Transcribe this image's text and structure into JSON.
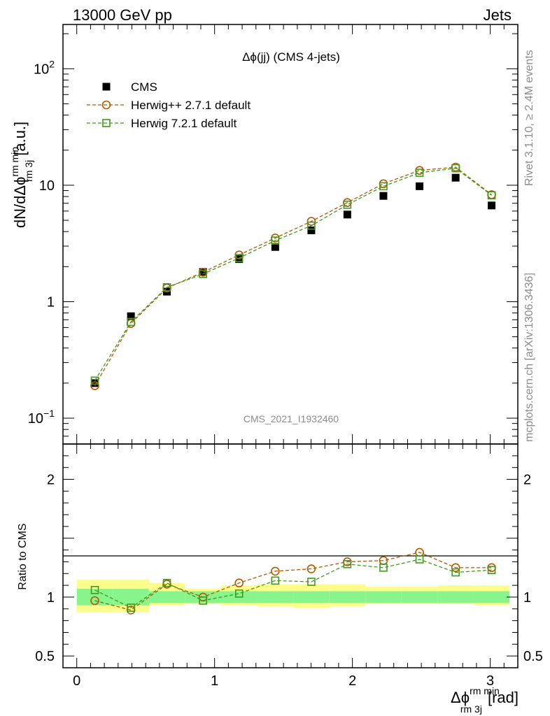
{
  "header": {
    "left": "13000 GeV pp",
    "right": "Jets"
  },
  "side_text": {
    "rivet": "Rivet 3.1.10, ≥ 2.4M events",
    "mcplots": "mcplots.cern.ch [arXiv:1306.3436]"
  },
  "watermark": "CMS_2021_I1932460",
  "colors": {
    "cms": "#000000",
    "herwigpp": "#b35900",
    "herwig7": "#3f9a1a",
    "band_inner": "#88f58c",
    "band_outer": "#fdfd8c"
  },
  "chart_data": [
    {
      "type": "scatter",
      "panel": "main",
      "title": "Δϕ(jj) (CMS 4-jets)",
      "ylabel_main": "dN/dΔϕ",
      "ylabel_sup": "rm min",
      "ylabel_sub": "rm 3j",
      "ylabel_unit": "[a.u.]",
      "yscale": "log",
      "ylim": [
        0.06,
        240
      ],
      "xlim": [
        -0.1,
        3.2
      ],
      "y_tick_labels": [
        {
          "value": 0.1,
          "base": "10",
          "exp": "−1"
        },
        {
          "value": 1,
          "base": "1",
          "exp": ""
        },
        {
          "value": 10,
          "base": "10",
          "exp": ""
        },
        {
          "value": 100,
          "base": "10",
          "exp": "2"
        }
      ],
      "legend_position": "top-left",
      "series": [
        {
          "name": "CMS",
          "marker": "filled-square",
          "x": [
            0.131,
            0.393,
            0.654,
            0.916,
            1.178,
            1.44,
            1.702,
            1.963,
            2.225,
            2.487,
            2.749,
            3.01
          ],
          "y": [
            0.2,
            0.75,
            1.22,
            1.8,
            2.32,
            2.95,
            4.1,
            5.6,
            8.1,
            9.8,
            11.6,
            6.7
          ]
        },
        {
          "name": "Herwig++ 2.7.1 default",
          "marker": "open-circle",
          "x": [
            0.131,
            0.393,
            0.654,
            0.916,
            1.178,
            1.44,
            1.702,
            1.963,
            2.225,
            2.487,
            2.749,
            3.01
          ],
          "y": [
            0.19,
            0.65,
            1.31,
            1.79,
            2.52,
            3.52,
            4.9,
            7.1,
            10.3,
            13.4,
            14.3,
            8.3
          ]
        },
        {
          "name": "Herwig 7.2.1 default",
          "marker": "open-square",
          "x": [
            0.131,
            0.393,
            0.654,
            0.916,
            1.178,
            1.44,
            1.702,
            1.963,
            2.225,
            2.487,
            2.749,
            3.01
          ],
          "y": [
            0.21,
            0.67,
            1.33,
            1.73,
            2.37,
            3.35,
            4.5,
            6.8,
            9.8,
            12.8,
            14.0,
            8.2
          ]
        }
      ]
    },
    {
      "type": "line",
      "panel": "ratio",
      "ylabel": "Ratio to CMS",
      "xlabel_main": "Δϕ",
      "xlabel_sup": "rm min",
      "xlabel_sub": "rm 3j",
      "xlabel_unit": "[rad]",
      "ylim": [
        0.4,
        2.3
      ],
      "xlim": [
        -0.1,
        3.2
      ],
      "x_tick_labels": [
        "0",
        "1",
        "2",
        "3"
      ],
      "y_tick_labels": [
        "0.5",
        "1",
        "2"
      ],
      "band_edges": [
        0.0,
        0.262,
        0.524,
        0.785,
        1.047,
        1.309,
        1.571,
        1.833,
        2.094,
        2.356,
        2.618,
        2.88,
        3.14
      ],
      "band_inner": [
        [
          0.93,
          1.07
        ],
        [
          0.93,
          1.07
        ],
        [
          0.95,
          1.05
        ],
        [
          0.95,
          1.05
        ],
        [
          0.95,
          1.05
        ],
        [
          0.95,
          1.05
        ],
        [
          0.95,
          1.05
        ],
        [
          0.95,
          1.05
        ],
        [
          0.95,
          1.05
        ],
        [
          0.95,
          1.05
        ],
        [
          0.95,
          1.05
        ],
        [
          0.95,
          1.05
        ]
      ],
      "band_outer": [
        [
          0.87,
          1.15
        ],
        [
          0.87,
          1.15
        ],
        [
          0.93,
          1.12
        ],
        [
          0.94,
          1.07
        ],
        [
          0.93,
          1.1
        ],
        [
          0.92,
          1.11
        ],
        [
          0.91,
          1.11
        ],
        [
          0.92,
          1.11
        ],
        [
          0.94,
          1.09
        ],
        [
          0.94,
          1.09
        ],
        [
          0.94,
          1.1
        ],
        [
          0.93,
          1.1
        ]
      ],
      "series": [
        {
          "name": "Herwig++ 2.7.1 default",
          "marker": "open-circle",
          "x": [
            0.131,
            0.393,
            0.654,
            0.916,
            1.178,
            1.44,
            1.702,
            1.963,
            2.225,
            2.487,
            2.749,
            3.01
          ],
          "y": [
            0.97,
            0.89,
            1.11,
            1.0,
            1.12,
            1.22,
            1.24,
            1.3,
            1.31,
            1.38,
            1.25,
            1.25
          ]
        },
        {
          "name": "Herwig 7.2.1 default",
          "marker": "open-square",
          "x": [
            0.131,
            0.393,
            0.654,
            0.916,
            1.178,
            1.44,
            1.702,
            1.963,
            2.225,
            2.487,
            2.749,
            3.01
          ],
          "y": [
            1.06,
            0.91,
            1.12,
            0.97,
            1.03,
            1.14,
            1.13,
            1.28,
            1.25,
            1.32,
            1.21,
            1.23
          ]
        }
      ]
    }
  ]
}
